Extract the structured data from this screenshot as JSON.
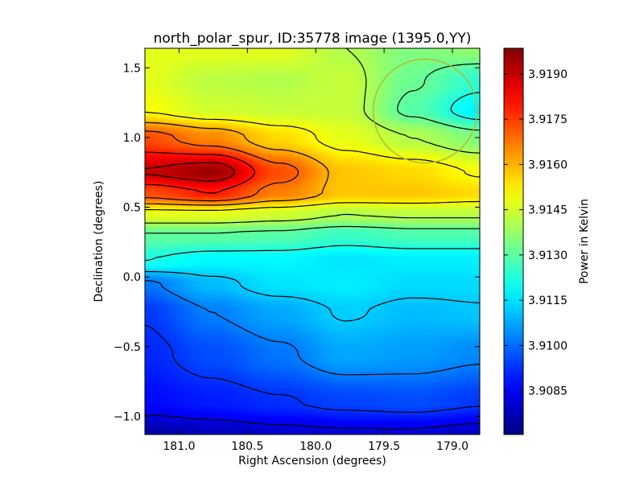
{
  "chart_data": {
    "type": "heatmap",
    "title": "north_polar_spur, ID:35778 image (1395.0,YY)",
    "xlabel": "Right Ascension (degrees)",
    "ylabel": "Declination (degrees)",
    "colorbar_label": "Power in Kelvin",
    "xlim": [
      181.25,
      178.8
    ],
    "ylim": [
      -1.13,
      1.64
    ],
    "x_ticks": [
      181.0,
      180.5,
      180.0,
      179.5,
      179.0
    ],
    "x_tick_labels": [
      "181.0",
      "180.5",
      "180.0",
      "179.5",
      "179.0"
    ],
    "y_ticks": [
      1.5,
      1.0,
      0.5,
      0.0,
      -0.5,
      -1.0
    ],
    "y_tick_labels": [
      "1.5",
      "1.0",
      "0.5",
      "0.0",
      "−0.5",
      "−1.0"
    ],
    "colorbar_range": [
      3.90705,
      3.91985
    ],
    "colorbar_ticks": [
      3.9085,
      3.91,
      3.9115,
      3.913,
      3.9145,
      3.916,
      3.9175,
      3.919
    ],
    "colorbar_tick_labels": [
      "3.9085",
      "3.9100",
      "3.9115",
      "3.9130",
      "3.9145",
      "3.9160",
      "3.9175",
      "3.9190"
    ],
    "colormap": "jet",
    "contour_color": "#000000",
    "circle_overlay": {
      "center_ra": 179.2,
      "center_dec": 1.19,
      "radius_deg": 0.38,
      "color": "#b5b935"
    }
  }
}
